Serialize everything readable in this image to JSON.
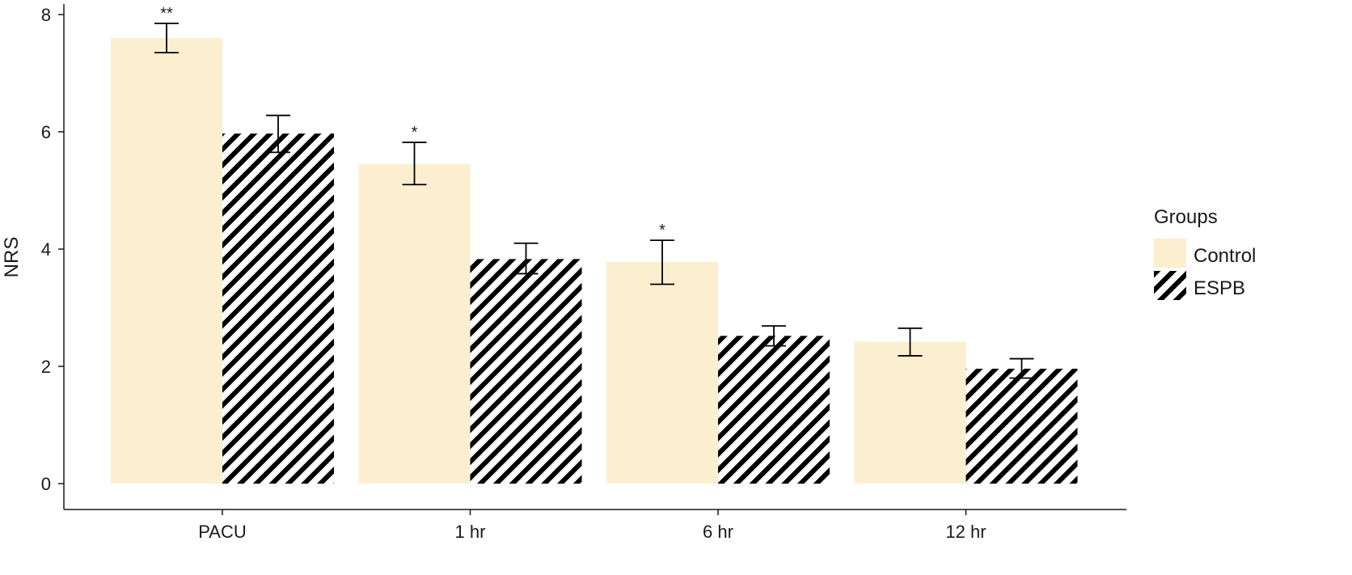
{
  "chart_data": {
    "type": "bar",
    "title": "",
    "xlabel": "",
    "ylabel": "NRS",
    "ylim": [
      0,
      8
    ],
    "yticks": [
      0,
      2,
      4,
      6,
      8
    ],
    "grid": false,
    "legend_position": "right",
    "categories": [
      "PACU",
      "1 hr",
      "6 hr",
      "12 hr"
    ],
    "legend": {
      "title": "Groups",
      "items": [
        {
          "label": "Control",
          "style": "solid",
          "color": "#fcefcf"
        },
        {
          "label": "ESPB",
          "style": "hatched",
          "color": "#000000"
        }
      ]
    },
    "series": [
      {
        "name": "Control",
        "values": [
          7.6,
          5.45,
          3.78,
          2.42
        ],
        "error_low": [
          7.35,
          5.1,
          3.4,
          2.18
        ],
        "error_high": [
          7.85,
          5.82,
          4.15,
          2.65
        ],
        "significance": [
          "**",
          "*",
          "*",
          ""
        ]
      },
      {
        "name": "ESPB",
        "values": [
          5.97,
          3.83,
          2.52,
          1.96
        ],
        "error_low": [
          5.65,
          3.58,
          2.35,
          1.8
        ],
        "error_high": [
          6.28,
          4.1,
          2.69,
          2.13
        ],
        "significance": [
          "",
          "",
          "",
          ""
        ]
      }
    ]
  }
}
